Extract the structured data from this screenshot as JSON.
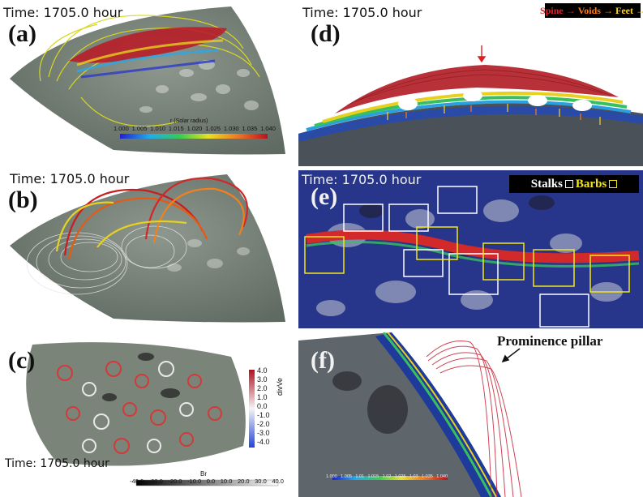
{
  "time_label": "Time: 1705.0 hour",
  "panels": {
    "a": {
      "label": "(a)"
    },
    "b": {
      "label": "(b)"
    },
    "c": {
      "label": "(c)"
    },
    "d": {
      "label": "(d)"
    },
    "e": {
      "label": "(e)"
    },
    "f": {
      "label": "(f)"
    }
  },
  "colorbar_a": {
    "title": "r (Solar radius)",
    "ticks": [
      "1.000",
      "1.005",
      "1.010",
      "1.015",
      "1.020",
      "1.025",
      "1.030",
      "1.035",
      "1.040"
    ]
  },
  "colorbar_divve": {
    "title": "divVe",
    "ticks": [
      "4.0",
      "3.0",
      "2.0",
      "1.0",
      "0.0",
      "-1.0",
      "-2.0",
      "-3.0",
      "-4.0"
    ]
  },
  "colorbar_br": {
    "title": "Br",
    "ticks": [
      "-40.0",
      "-30.0",
      "-20.0",
      "-10.0",
      "0.0",
      "10.0",
      "20.0",
      "30.0",
      "40.0"
    ]
  },
  "colorbar_f": {
    "ticks": [
      "1.000",
      "1.005",
      "1.01",
      "1.015",
      "1.02",
      "1.025",
      "1.03",
      "1.035",
      "1.040"
    ]
  },
  "legend_d": {
    "spine": "Spine",
    "voids": "Voids",
    "feet": "Feet",
    "arrow": "→",
    "colors": {
      "spine": "#e0202a",
      "voids": "#ff7a1a",
      "feet": "#ffd21f"
    }
  },
  "legend_e": {
    "stalks": "Stalks",
    "barbs": "Barbs",
    "colors": {
      "stalks": "#ffffff",
      "barbs": "#f2e61a"
    }
  },
  "annotation_f": "Prominence pillar"
}
